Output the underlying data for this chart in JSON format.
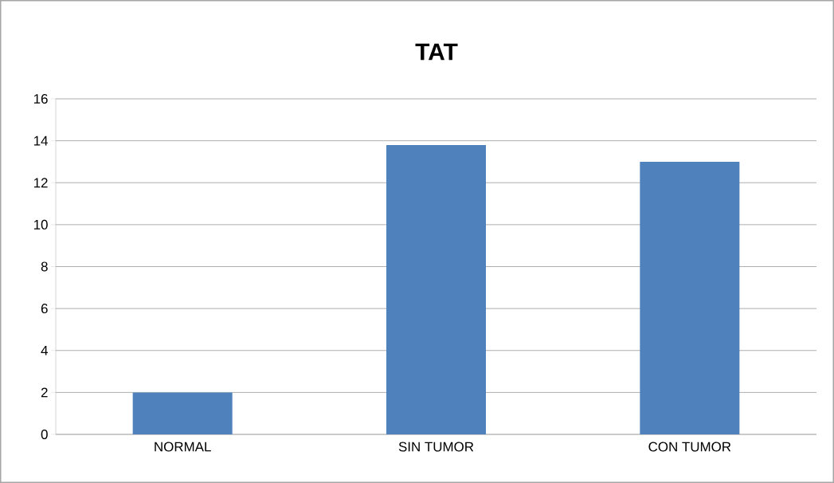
{
  "chart_data": {
    "type": "bar",
    "title": "TAT",
    "categories": [
      "NORMAL",
      "SIN TUMOR",
      "CON TUMOR"
    ],
    "values": [
      2,
      13.8,
      13.0
    ],
    "color": "#4f81bd",
    "ylim": [
      0,
      16
    ],
    "yticks": [
      0,
      2,
      4,
      6,
      8,
      10,
      12,
      14,
      16
    ],
    "grid": "y"
  }
}
